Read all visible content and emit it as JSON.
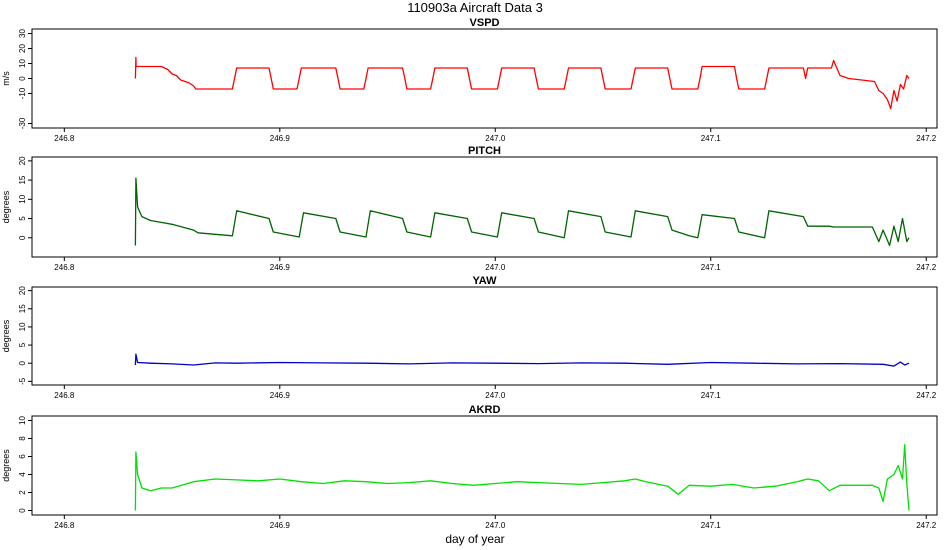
{
  "figure": {
    "title": "110903a   Aircraft Data 3",
    "xlabel": "day of year"
  },
  "chart_data": [
    {
      "type": "line",
      "title": "VSPD",
      "ylabel": "m/s",
      "color": "#ff0000",
      "xlim": [
        246.785,
        247.205
      ],
      "ylim": [
        -33,
        33
      ],
      "xticks": [
        "246.8",
        "246.9",
        "247.0",
        "247.1",
        "247.2"
      ],
      "xtick_values": [
        246.8,
        246.9,
        247.0,
        247.1,
        247.2
      ],
      "yticks": [
        "30",
        "20",
        "10",
        "0",
        "-10",
        "-30"
      ],
      "ytick_values": [
        30,
        20,
        10,
        0,
        -10,
        -30
      ],
      "series": [
        {
          "name": "",
          "x": [
            246.833,
            246.8332,
            246.8333,
            246.8336,
            246.834,
            246.845,
            246.848,
            246.85,
            246.852,
            246.854,
            246.856,
            246.858,
            246.86,
            246.861,
            246.862,
            246.878,
            246.879,
            246.88,
            246.895,
            246.896,
            246.897,
            246.908,
            246.909,
            246.91,
            246.926,
            246.927,
            246.928,
            246.939,
            246.94,
            246.941,
            246.957,
            246.958,
            246.959,
            246.97,
            246.971,
            246.972,
            246.987,
            246.988,
            246.989,
            247.001,
            247.002,
            247.003,
            247.018,
            247.019,
            247.02,
            247.032,
            247.033,
            247.034,
            247.049,
            247.05,
            247.051,
            247.063,
            247.064,
            247.065,
            247.08,
            247.081,
            247.082,
            247.094,
            247.095,
            247.096,
            247.111,
            247.112,
            247.113,
            247.125,
            247.126,
            247.127,
            247.143,
            247.144,
            247.145,
            247.156,
            247.157,
            247.16,
            247.164,
            247.17,
            247.176,
            247.178,
            247.18,
            247.182,
            247.1835,
            247.185,
            247.1865,
            247.188,
            247.1895,
            247.191,
            247.192
          ],
          "y": [
            0,
            14,
            8,
            8,
            8,
            8,
            6,
            3,
            2,
            -1,
            -2,
            -3,
            -5,
            -7,
            -7,
            -7,
            0,
            7,
            7,
            0,
            -7,
            -7,
            0,
            7,
            7,
            0,
            -7,
            -7,
            0,
            7,
            7,
            0,
            -7,
            -7,
            0,
            7,
            7,
            0,
            -7,
            -7,
            0,
            7,
            7,
            0,
            -7,
            -7,
            0,
            7,
            7,
            0,
            -7,
            -7,
            0,
            7,
            7,
            0,
            -7,
            -7,
            0,
            8,
            8,
            0,
            -7,
            -7,
            0,
            7,
            7,
            0,
            7,
            7,
            12,
            2,
            0,
            -1,
            -2,
            -8,
            -10,
            -14,
            -20,
            -8,
            -15,
            -4,
            -7,
            2,
            0
          ]
        }
      ]
    },
    {
      "type": "line",
      "title": "PITCH",
      "ylabel": "degrees",
      "color": "#006400",
      "xlim": [
        246.785,
        247.205
      ],
      "ylim": [
        -5,
        21
      ],
      "xticks": [
        "246.8",
        "246.9",
        "247.0",
        "247.1",
        "247.2"
      ],
      "xtick_values": [
        246.8,
        246.9,
        247.0,
        247.1,
        247.2
      ],
      "yticks": [
        "20",
        "15",
        "10",
        "5",
        "0"
      ],
      "ytick_values": [
        20,
        15,
        10,
        5,
        0
      ],
      "series": [
        {
          "name": "",
          "x": [
            246.833,
            246.8332,
            246.834,
            246.836,
            246.84,
            246.845,
            246.85,
            246.86,
            246.862,
            246.878,
            246.88,
            246.895,
            246.897,
            246.909,
            246.911,
            246.926,
            246.928,
            246.94,
            246.942,
            246.957,
            246.959,
            246.97,
            246.972,
            246.987,
            246.989,
            247.001,
            247.003,
            247.018,
            247.02,
            247.032,
            247.034,
            247.049,
            247.051,
            247.063,
            247.065,
            247.08,
            247.082,
            247.09,
            247.094,
            247.096,
            247.111,
            247.113,
            247.125,
            247.127,
            247.143,
            247.145,
            247.155,
            247.157,
            247.16,
            247.175,
            247.178,
            247.18,
            247.183,
            247.185,
            247.187,
            247.189,
            247.191,
            247.192
          ],
          "y": [
            -2,
            15.5,
            8,
            5.5,
            4.5,
            4,
            3.5,
            2,
            1.3,
            0.5,
            7,
            5,
            1.5,
            0.2,
            6.5,
            5,
            1.5,
            0.2,
            7,
            5,
            1.5,
            0.2,
            6.5,
            5,
            1.5,
            0.2,
            6.5,
            5,
            1.5,
            0,
            7,
            5.5,
            1.5,
            0.2,
            7,
            5.5,
            2,
            0.5,
            0,
            6,
            5,
            1.5,
            0,
            7,
            5.5,
            3,
            3,
            2.8,
            2.8,
            2.8,
            -1,
            2,
            -2,
            3,
            -1,
            5,
            -1,
            0
          ]
        }
      ]
    },
    {
      "type": "line",
      "title": "YAW",
      "ylabel": "degrees",
      "color": "#0000cd",
      "xlim": [
        246.785,
        247.205
      ],
      "ylim": [
        -6,
        21
      ],
      "xticks": [
        "246.8",
        "246.9",
        "247.0",
        "247.1",
        "247.2"
      ],
      "xtick_values": [
        246.8,
        246.9,
        247.0,
        247.1,
        247.2
      ],
      "yticks": [
        "20",
        "15",
        "10",
        "5",
        "0",
        "-5"
      ],
      "ytick_values": [
        20,
        15,
        10,
        5,
        0,
        -5
      ],
      "series": [
        {
          "name": "",
          "x": [
            246.833,
            246.8332,
            246.834,
            246.84,
            246.85,
            246.86,
            246.87,
            246.88,
            246.9,
            246.92,
            246.94,
            246.96,
            246.98,
            247.0,
            247.02,
            247.04,
            247.06,
            247.08,
            247.1,
            247.12,
            247.14,
            247.16,
            247.18,
            247.185,
            247.188,
            247.19,
            247.192
          ],
          "y": [
            -0.5,
            2.5,
            0.2,
            0,
            -0.2,
            -0.5,
            0.1,
            0,
            0.2,
            0.1,
            0,
            -0.2,
            0.1,
            0,
            -0.1,
            0.1,
            0,
            -0.3,
            0.2,
            0,
            -0.2,
            -0.1,
            -0.3,
            -0.8,
            0.3,
            -0.5,
            0
          ]
        }
      ]
    },
    {
      "type": "line",
      "title": "AKRD",
      "ylabel": "degrees",
      "color": "#00e000",
      "xlim": [
        246.785,
        247.205
      ],
      "ylim": [
        -0.5,
        10.5
      ],
      "xticks": [
        "246.8",
        "246.9",
        "247.0",
        "247.1",
        "247.2"
      ],
      "xtick_values": [
        246.8,
        246.9,
        247.0,
        247.1,
        247.2
      ],
      "yticks": [
        "10",
        "8",
        "6",
        "4",
        "2",
        "0"
      ],
      "ytick_values": [
        10,
        8,
        6,
        4,
        2,
        0
      ],
      "series": [
        {
          "name": "",
          "x": [
            246.833,
            246.8332,
            246.834,
            246.836,
            246.84,
            246.845,
            246.85,
            246.86,
            246.87,
            246.88,
            246.89,
            246.9,
            246.91,
            246.92,
            246.93,
            246.94,
            246.95,
            246.96,
            246.97,
            246.98,
            246.99,
            247.0,
            247.01,
            247.02,
            247.03,
            247.04,
            247.05,
            247.06,
            247.065,
            247.07,
            247.08,
            247.085,
            247.09,
            247.1,
            247.11,
            247.12,
            247.13,
            247.14,
            247.145,
            247.15,
            247.155,
            247.16,
            247.17,
            247.175,
            247.178,
            247.18,
            247.182,
            247.185,
            247.187,
            247.189,
            247.19,
            247.191,
            247.192
          ],
          "y": [
            0,
            6.5,
            4,
            2.5,
            2.2,
            2.5,
            2.5,
            3.2,
            3.5,
            3.4,
            3.3,
            3.5,
            3.2,
            3.0,
            3.3,
            3.2,
            3.0,
            3.1,
            3.3,
            3.0,
            2.8,
            3.0,
            3.2,
            3.1,
            3.0,
            2.9,
            3.1,
            3.3,
            3.5,
            3.2,
            2.7,
            1.8,
            2.8,
            2.7,
            2.9,
            2.5,
            2.7,
            3.2,
            3.5,
            3.3,
            2.2,
            2.8,
            2.8,
            2.8,
            2.5,
            1.0,
            3.5,
            4.0,
            5.0,
            3.5,
            7.3,
            3.0,
            0
          ]
        }
      ]
    }
  ]
}
